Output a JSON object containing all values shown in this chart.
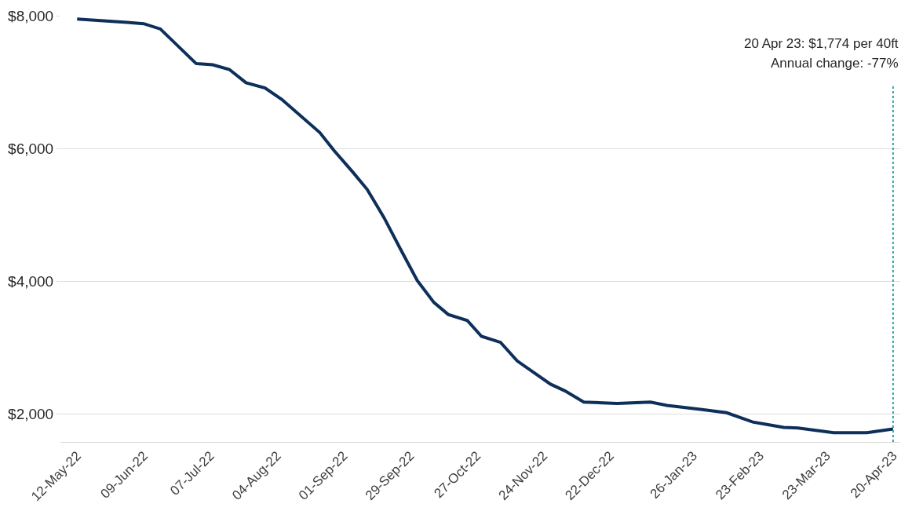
{
  "chart_data": {
    "type": "line",
    "x": [
      "2022-05-12",
      "2022-06-02",
      "2022-06-09",
      "2022-06-16",
      "2022-07-01",
      "2022-07-08",
      "2022-07-15",
      "2022-07-22",
      "2022-07-30",
      "2022-08-06",
      "2022-08-22",
      "2022-08-28",
      "2022-09-05",
      "2022-09-11",
      "2022-09-18",
      "2022-09-25",
      "2022-10-02",
      "2022-10-09",
      "2022-10-15",
      "2022-10-23",
      "2022-10-29",
      "2022-11-06",
      "2022-11-13",
      "2022-11-27",
      "2022-12-03",
      "2022-12-11",
      "2022-12-25",
      "2023-01-08",
      "2023-01-15",
      "2023-01-29",
      "2023-02-09",
      "2023-02-20",
      "2023-02-25",
      "2023-03-05",
      "2023-03-11",
      "2023-03-26",
      "2023-04-09",
      "2023-04-20"
    ],
    "series": [
      {
        "color": "#0d2f5a",
        "values": [
          7950,
          7900,
          7880,
          7800,
          7280,
          7260,
          7190,
          6990,
          6910,
          6740,
          6240,
          5970,
          5640,
          5380,
          4960,
          4480,
          4010,
          3680,
          3500,
          3410,
          3170,
          3080,
          2800,
          2450,
          2350,
          2180,
          2160,
          2180,
          2130,
          2070,
          2020,
          1880,
          1850,
          1800,
          1790,
          1720,
          1720,
          1774
        ]
      }
    ],
    "ylim": [
      1580,
      8000
    ],
    "yticks": [
      {
        "value": 2000,
        "label": "$2,000"
      },
      {
        "value": 4000,
        "label": "$4,000"
      },
      {
        "value": 6000,
        "label": "$6,000"
      },
      {
        "value": 8000,
        "label": "$8,000"
      }
    ],
    "xlim": [
      "2022-05-05",
      "2023-04-23"
    ],
    "xticks": [
      {
        "value": "2022-05-12",
        "label": "12-May-22"
      },
      {
        "value": "2022-06-09",
        "label": "09-Jun-22"
      },
      {
        "value": "2022-07-07",
        "label": "07-Jul-22"
      },
      {
        "value": "2022-08-04",
        "label": "04-Aug-22"
      },
      {
        "value": "2022-09-01",
        "label": "01-Sep-22"
      },
      {
        "value": "2022-09-29",
        "label": "29-Sep-22"
      },
      {
        "value": "2022-10-27",
        "label": "27-Oct-22"
      },
      {
        "value": "2022-11-24",
        "label": "24-Nov-22"
      },
      {
        "value": "2022-12-22",
        "label": "22-Dec-22"
      },
      {
        "value": "2023-01-26",
        "label": "26-Jan-23"
      },
      {
        "value": "2023-02-23",
        "label": "23-Feb-23"
      },
      {
        "value": "2023-03-23",
        "label": "23-Mar-23"
      },
      {
        "value": "2023-04-20",
        "label": "20-Apr-23"
      }
    ],
    "grid": "y",
    "marker": "none",
    "line_style": "solid",
    "ref_lines": [
      {
        "axis": "x",
        "value": "2023-04-20",
        "color": "#2aa8a8",
        "line_style": "dotted"
      }
    ],
    "annotations": [
      "20 Apr 23: $1,774 per 40ft",
      "Annual change: -77%"
    ]
  }
}
